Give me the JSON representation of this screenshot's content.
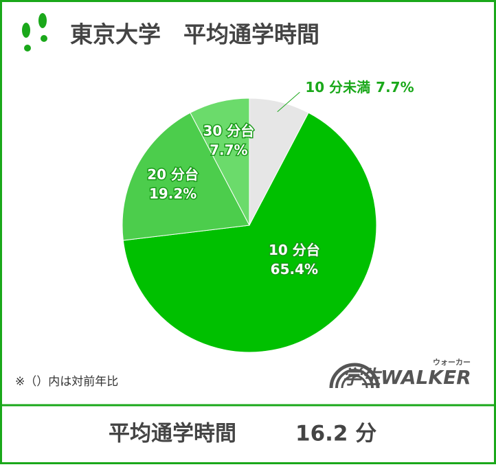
{
  "chart_data": {
    "type": "pie",
    "title": "東京大学　平均通学時間",
    "categories": [
      "10 分未満",
      "10 分台",
      "20 分台",
      "30 分台"
    ],
    "values": [
      7.7,
      65.4,
      19.2,
      7.7
    ],
    "value_labels": [
      "7.7%",
      "65.4%",
      "19.2%",
      "7.7%"
    ],
    "colors": [
      "#e6e6e6",
      "#00c000",
      "#4ccd4c",
      "#6bdb6b"
    ],
    "note": "※（）内は対前年比"
  },
  "logo": {
    "text": "学生WALKER",
    "ruby": "ウォーカー"
  },
  "footer": {
    "label": "平均通学時間",
    "value": "16.2 分"
  }
}
